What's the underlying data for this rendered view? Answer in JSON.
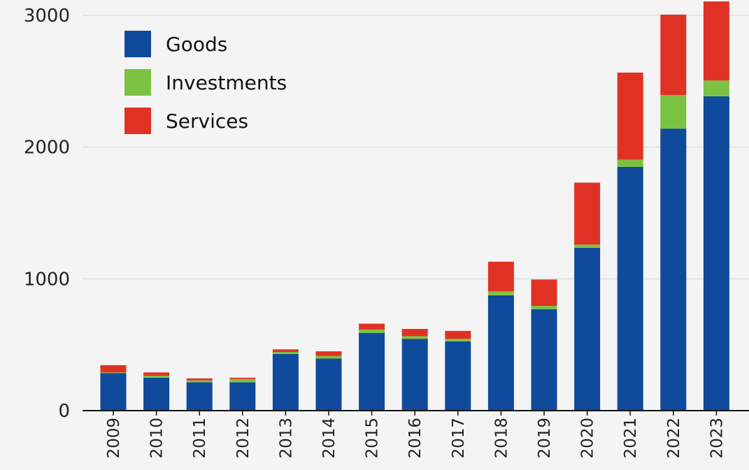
{
  "chart_data": {
    "type": "bar",
    "stacked": true,
    "title": "",
    "xlabel": "",
    "ylabel": "",
    "ylim": [
      0,
      3100
    ],
    "yticks": [
      0,
      1000,
      2000,
      3000
    ],
    "grid": "horizontal",
    "legend_position": "top-left",
    "categories": [
      "2009",
      "2010",
      "2011",
      "2012",
      "2013",
      "2014",
      "2015",
      "2016",
      "2017",
      "2018",
      "2019",
      "2020",
      "2021",
      "2022",
      "2023"
    ],
    "series": [
      {
        "name": "Goods",
        "color": "#0f4a9c",
        "values": [
          285,
          250,
          215,
          215,
          430,
          395,
          590,
          545,
          525,
          875,
          770,
          1235,
          1850,
          2140,
          2385
        ]
      },
      {
        "name": "Investments",
        "color": "#7cc242",
        "values": [
          5,
          15,
          15,
          25,
          15,
          20,
          25,
          20,
          20,
          30,
          25,
          25,
          55,
          255,
          120
        ]
      },
      {
        "name": "Services",
        "color": "#e03224",
        "values": [
          55,
          25,
          15,
          10,
          20,
          35,
          45,
          55,
          60,
          225,
          200,
          470,
          660,
          610,
          600
        ]
      }
    ]
  }
}
